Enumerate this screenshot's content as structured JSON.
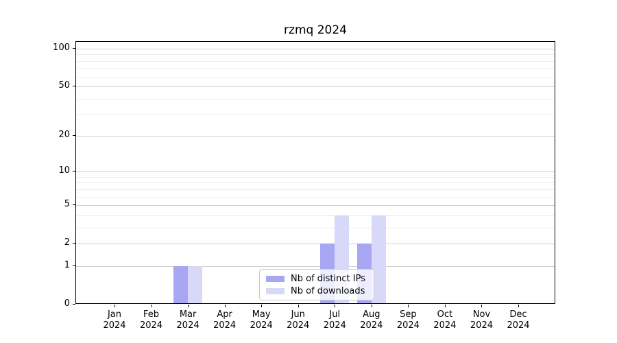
{
  "chart_data": {
    "type": "bar",
    "title": "rzmq 2024",
    "months": [
      "Jan",
      "Feb",
      "Mar",
      "Apr",
      "May",
      "Jun",
      "Jul",
      "Aug",
      "Sep",
      "Oct",
      "Nov",
      "Dec"
    ],
    "year": "2024",
    "series": [
      {
        "name": "Nb of distinct IPs",
        "color": "#a7a7f3",
        "values": [
          0,
          0,
          1,
          0,
          0,
          0,
          2,
          2,
          0,
          0,
          0,
          0
        ]
      },
      {
        "name": "Nb of downloads",
        "color": "#d8d8f8",
        "values": [
          0,
          0,
          1,
          0,
          0,
          0,
          4,
          4,
          0,
          0,
          0,
          0
        ]
      }
    ],
    "y_scale": "log1p",
    "ylim": [
      0,
      113
    ],
    "y_major_ticks": [
      0,
      1,
      2,
      5,
      10,
      20,
      50,
      100
    ],
    "y_minor_gridlines": [
      3,
      4,
      6,
      7,
      8,
      9,
      30,
      40,
      60,
      70,
      80,
      90
    ],
    "grid": "on",
    "legend_position": "inside-bottom-center"
  },
  "colors": {
    "major_grid": "#cfcfcf",
    "minor_grid": "#ececec",
    "axis": "#000000",
    "legend_border": "#cccccc",
    "background": "#ffffff"
  }
}
